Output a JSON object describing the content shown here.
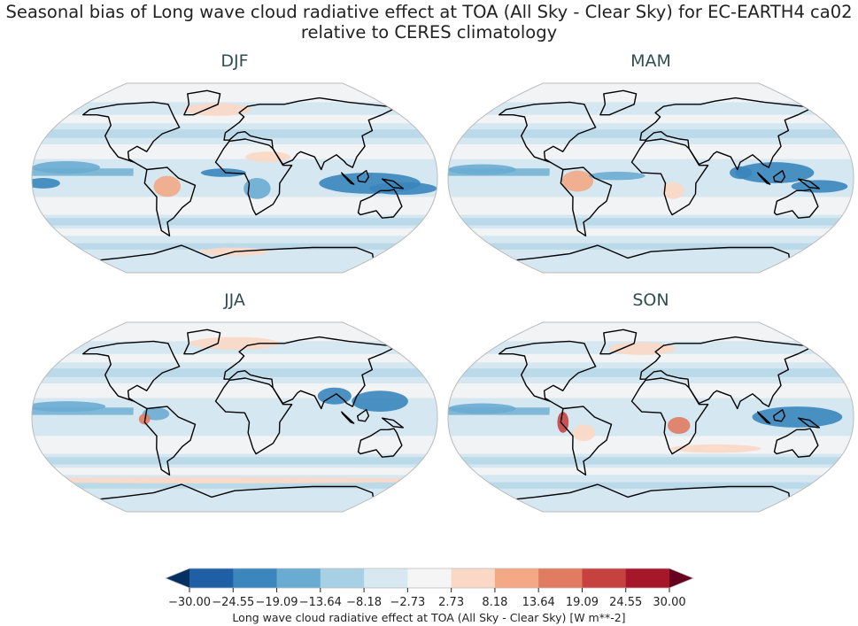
{
  "title_line1": "Seasonal bias of Long wave cloud radiative effect at TOA (All Sky - Clear Sky) for EC-EARTH4 ca02",
  "title_line2": "relative to CERES climatology",
  "panels": [
    {
      "title": "DJF"
    },
    {
      "title": "MAM"
    },
    {
      "title": "JJA"
    },
    {
      "title": "SON"
    }
  ],
  "colorbar": {
    "label": "Long wave cloud radiative effect at TOA (All Sky - Clear Sky) [W m**-2]",
    "ticks": [
      "−30.00",
      "−24.55",
      "−19.09",
      "−13.64",
      "−8.18",
      "−2.73",
      "2.73",
      "8.18",
      "13.64",
      "19.09",
      "24.55",
      "30.00"
    ],
    "range": [
      -30,
      30
    ],
    "colors": [
      "#1f5fa5",
      "#3a86bd",
      "#6aacd1",
      "#a8d0e4",
      "#d7e8f1",
      "#f5f5f5",
      "#fbd8c5",
      "#f4a886",
      "#e17b62",
      "#c64240",
      "#a51729"
    ],
    "extend_low": "#053061",
    "extend_high": "#67001f",
    "extend": "both"
  }
}
